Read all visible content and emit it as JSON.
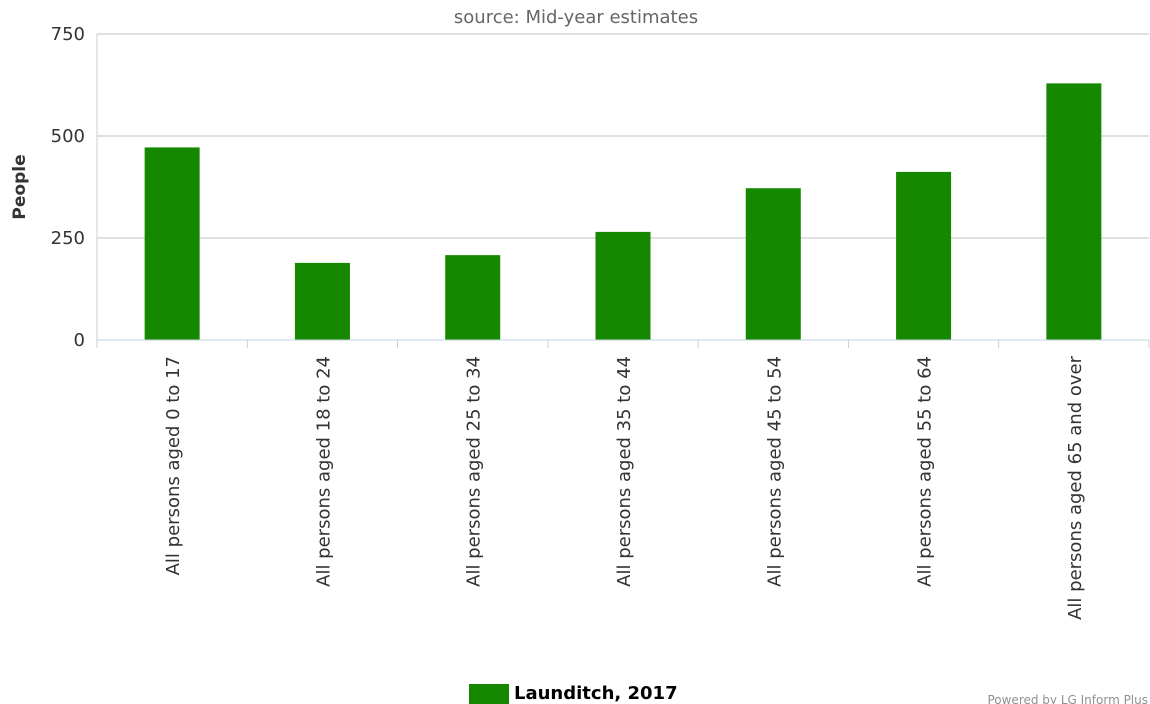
{
  "chart_data": {
    "type": "bar",
    "subtitle": "source: Mid-year estimates",
    "ylabel": "People",
    "xlabel": "",
    "ylim": [
      0,
      750
    ],
    "yticks": [
      0,
      250,
      500,
      750
    ],
    "grid": true,
    "categories": [
      "All persons aged 0 to 17",
      "All persons aged 18 to 24",
      "All persons aged 25 to 34",
      "All persons aged 35 to 44",
      "All persons aged 45 to 54",
      "All persons aged 55 to 64",
      "All persons aged 65 and over"
    ],
    "series": [
      {
        "name": "Launditch, 2017",
        "color": "#158800",
        "values": [
          472,
          189,
          208,
          265,
          372,
          412,
          629
        ]
      }
    ],
    "legend_position": "bottom"
  },
  "credit": "Powered by LG Inform Plus"
}
